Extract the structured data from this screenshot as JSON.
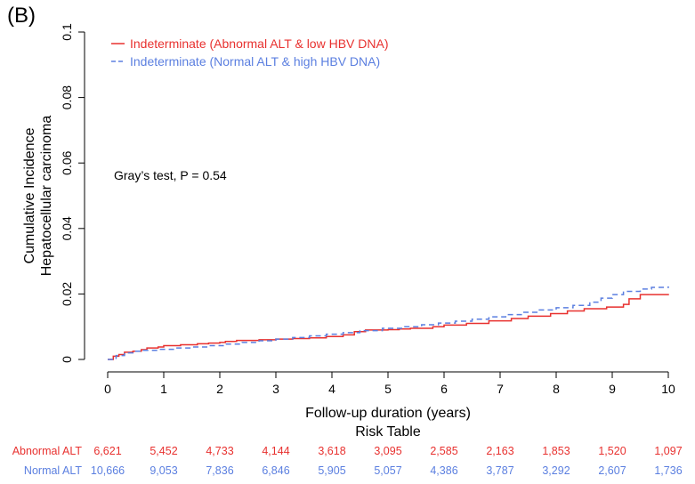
{
  "panel_label": "(B)",
  "chart_data": {
    "type": "line",
    "title": "",
    "xlabel": "Follow-up duration (years)",
    "ylabel_lines": [
      "Cumulative Incidence",
      "Hepatocellular carcinoma"
    ],
    "xlim": [
      0,
      10
    ],
    "ylim": [
      0,
      0.1
    ],
    "x_ticks": [
      0,
      1,
      2,
      3,
      4,
      5,
      6,
      7,
      8,
      9,
      10
    ],
    "y_ticks": [
      0,
      0.02,
      0.04,
      0.06,
      0.08,
      0.1
    ],
    "y_tick_labels": [
      "0",
      "0.02",
      "0.04",
      "0.06",
      "0.08",
      "0.1"
    ],
    "grid": false,
    "legend_position": "top-left",
    "annotation": "Gray’s test, P = 0.54",
    "series": [
      {
        "name": "Indeterminate (Abnormal ALT & low HBV DNA)",
        "color": "#e8312f",
        "dash": "solid",
        "x": [
          0,
          0.1,
          0.2,
          0.3,
          0.45,
          0.6,
          0.7,
          0.9,
          1.0,
          1.3,
          1.6,
          1.8,
          2.0,
          2.1,
          2.3,
          2.7,
          3.0,
          3.3,
          3.6,
          3.9,
          4.2,
          4.4,
          4.6,
          5.0,
          5.2,
          5.4,
          5.8,
          6.0,
          6.4,
          6.8,
          7.2,
          7.5,
          7.9,
          8.2,
          8.5,
          8.9,
          9.2,
          9.3,
          9.5,
          10.0
        ],
        "values": [
          0,
          0.001,
          0.0015,
          0.0022,
          0.0025,
          0.003,
          0.0035,
          0.0038,
          0.0042,
          0.0045,
          0.0048,
          0.005,
          0.0052,
          0.0055,
          0.0058,
          0.006,
          0.0062,
          0.0064,
          0.0066,
          0.007,
          0.0075,
          0.0085,
          0.009,
          0.0091,
          0.0093,
          0.0095,
          0.01,
          0.0105,
          0.011,
          0.0118,
          0.0125,
          0.0132,
          0.014,
          0.0148,
          0.0155,
          0.016,
          0.0168,
          0.0185,
          0.0198,
          0.02
        ]
      },
      {
        "name": "Indeterminate (Normal ALT & high HBV DNA)",
        "color": "#5b7fe0",
        "dash": "dashed",
        "x": [
          0,
          0.15,
          0.3,
          0.45,
          0.6,
          0.9,
          1.2,
          1.5,
          1.8,
          2.1,
          2.4,
          2.7,
          3.0,
          3.3,
          3.6,
          3.9,
          4.2,
          4.5,
          4.9,
          5.3,
          5.6,
          5.9,
          6.2,
          6.5,
          6.8,
          7.1,
          7.4,
          7.7,
          8.0,
          8.3,
          8.6,
          8.8,
          9.0,
          9.2,
          9.5,
          9.7,
          10.0
        ],
        "values": [
          0,
          0.0012,
          0.002,
          0.0025,
          0.0028,
          0.0031,
          0.0035,
          0.0038,
          0.0042,
          0.0047,
          0.0052,
          0.0057,
          0.0062,
          0.0067,
          0.0072,
          0.0077,
          0.0082,
          0.0088,
          0.0095,
          0.01,
          0.0106,
          0.0111,
          0.0117,
          0.0123,
          0.013,
          0.0137,
          0.0144,
          0.0151,
          0.0158,
          0.0165,
          0.0175,
          0.0187,
          0.0198,
          0.0208,
          0.0215,
          0.022,
          0.0223
        ]
      }
    ],
    "risk_table": {
      "title": "Risk Table",
      "rows": [
        {
          "label": "Abnormal ALT",
          "color": "#e8312f",
          "values": [
            "6,621",
            "5,452",
            "4,733",
            "4,144",
            "3,618",
            "3,095",
            "2,585",
            "2,163",
            "1,853",
            "1,520",
            "1,097"
          ]
        },
        {
          "label": "Normal ALT",
          "color": "#5b7fe0",
          "values": [
            "10,666",
            "9,053",
            "7,836",
            "6,846",
            "5,905",
            "5,057",
            "4,386",
            "3,787",
            "3,292",
            "2,607",
            "1,736"
          ]
        }
      ]
    }
  }
}
